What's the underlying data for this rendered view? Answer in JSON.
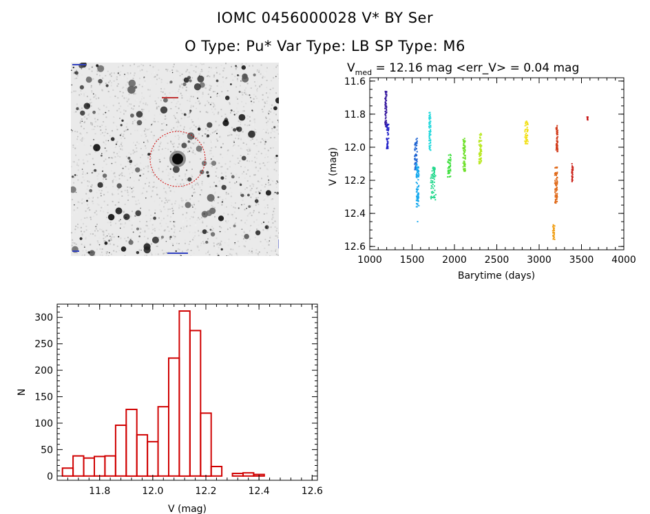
{
  "header": {
    "title_line1": "IOMC 0456000028    V* BY Ser",
    "title_line2": "O Type: Pu*  Var Type: LB  SP Type: M6"
  },
  "light_curve": {
    "title_pre": "V",
    "title_sub": "med",
    "title_post": " = 12.16 mag <err_V> = 0.04 mag"
  },
  "chart_data": [
    {
      "type": "scatter",
      "xlabel": "Barytime (days)",
      "ylabel": "V (mag)",
      "xlim": [
        1000,
        4000
      ],
      "ylim": [
        12.62,
        11.58
      ],
      "y_inverted": true,
      "xticks": [
        1000,
        1500,
        2000,
        2500,
        3000,
        3500,
        4000
      ],
      "yticks": [
        11.6,
        11.8,
        12.0,
        12.2,
        12.4,
        12.6
      ],
      "series": [
        {
          "color": "#3a1ca0",
          "x_range": [
            1180,
            1200
          ],
          "y_range": [
            11.66,
            11.88
          ]
        },
        {
          "color": "#2020c8",
          "x_range": [
            1200,
            1225
          ],
          "y_range": [
            11.86,
            12.01
          ]
        },
        {
          "color": "#1e64d2",
          "x_range": [
            1530,
            1560
          ],
          "y_range": [
            11.94,
            12.14
          ]
        },
        {
          "color": "#18aaee",
          "x_range": [
            1550,
            1580
          ],
          "y_range": [
            12.1,
            12.36
          ],
          "outliers": [
            {
              "x": 1565,
              "y": 12.45
            }
          ]
        },
        {
          "color": "#22d8dc",
          "x_range": [
            1700,
            1720
          ],
          "y_range": [
            11.79,
            12.02
          ]
        },
        {
          "color": "#22d88c",
          "x_range": [
            1720,
            1780
          ],
          "y_range": [
            12.12,
            12.32
          ]
        },
        {
          "color": "#40e040",
          "x_range": [
            1920,
            1960
          ],
          "y_range": [
            12.04,
            12.18
          ]
        },
        {
          "color": "#6ee02a",
          "x_range": [
            2100,
            2130
          ],
          "y_range": [
            11.94,
            12.15
          ]
        },
        {
          "color": "#b8e820",
          "x_range": [
            2290,
            2320
          ],
          "y_range": [
            11.91,
            12.1
          ]
        },
        {
          "color": "#f2e018",
          "x_range": [
            2830,
            2870
          ],
          "y_range": [
            11.84,
            11.98
          ]
        },
        {
          "color": "#f0a018",
          "x_range": [
            3160,
            3185
          ],
          "y_range": [
            12.46,
            12.56
          ]
        },
        {
          "color": "#e06a1a",
          "x_range": [
            3185,
            3215
          ],
          "y_range": [
            12.12,
            12.34
          ]
        },
        {
          "color": "#d23c1c",
          "x_range": [
            3200,
            3220
          ],
          "y_range": [
            11.87,
            12.03
          ]
        },
        {
          "color": "#cc2820",
          "x_range": [
            3385,
            3400
          ],
          "y_range": [
            12.1,
            12.21
          ]
        },
        {
          "color": "#c81818",
          "x_range": [
            3565,
            3575
          ],
          "y_range": [
            11.81,
            11.84
          ]
        }
      ]
    },
    {
      "type": "bar",
      "xlabel": "V (mag)",
      "ylabel": "N",
      "xlim": [
        11.64,
        12.62
      ],
      "ylim": [
        -8,
        325
      ],
      "xticks": [
        "11.8",
        "12.0",
        "12.2",
        "12.4",
        "12.6"
      ],
      "yticks": [
        "0",
        "50",
        "100",
        "150",
        "200",
        "250",
        "300"
      ],
      "bin_start": 11.66,
      "bin_width": 0.04,
      "values": [
        15,
        38,
        34,
        37,
        38,
        96,
        126,
        78,
        65,
        131,
        223,
        312,
        275,
        119,
        18,
        0,
        5,
        6,
        3,
        0
      ],
      "bar_color": "#d00000"
    }
  ],
  "colors": {
    "bar_outline": "#d00000",
    "circle": "#d00000"
  },
  "icons": {
    "sky_image": "stellar-field-image"
  }
}
